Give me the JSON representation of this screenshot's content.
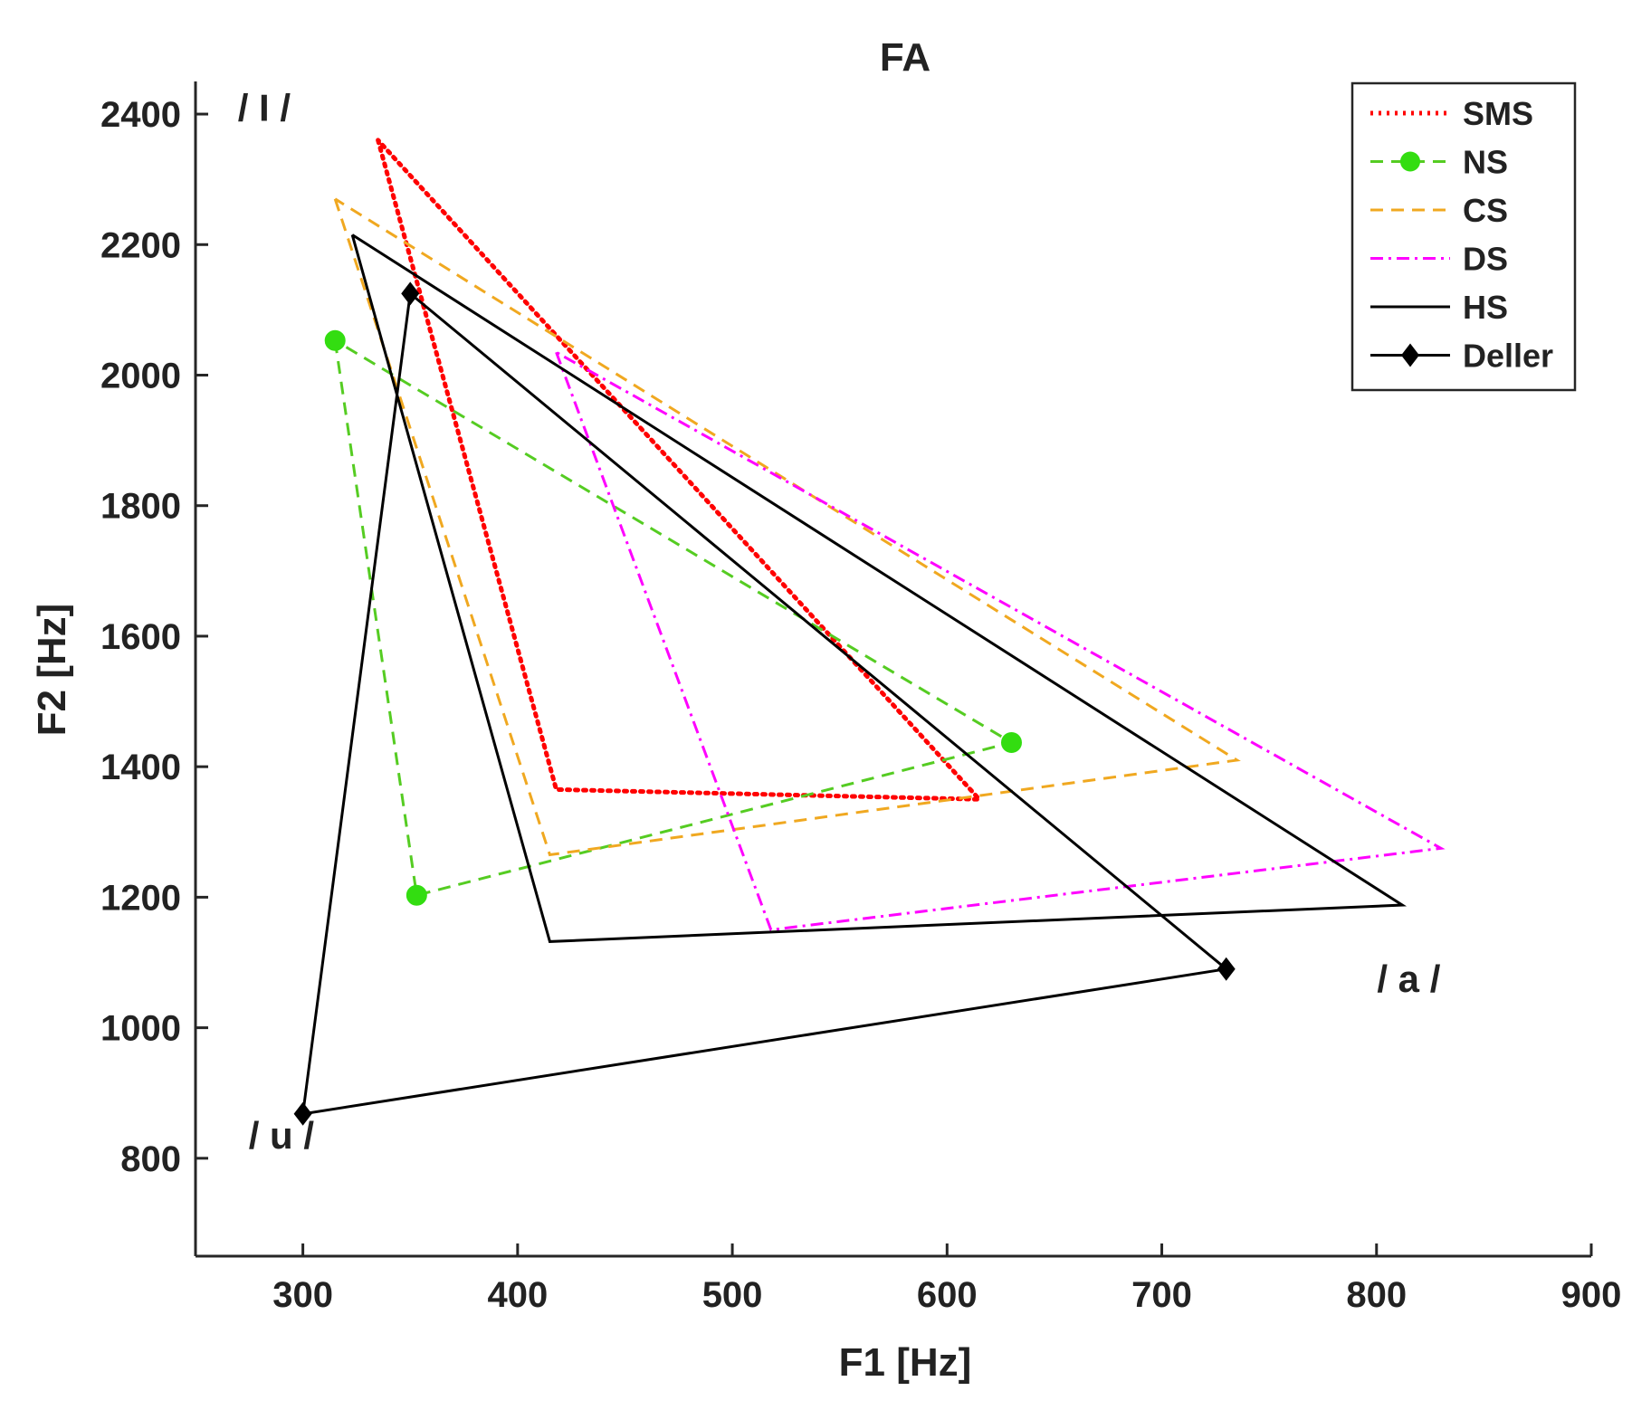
{
  "chart_data": {
    "type": "line",
    "title": "FA",
    "xlabel": "F1 [Hz]",
    "ylabel": "F2 [Hz]",
    "xlim": [
      250,
      900
    ],
    "ylim": [
      650,
      2450
    ],
    "xticks": [
      300,
      400,
      500,
      600,
      700,
      800,
      900
    ],
    "yticks": [
      800,
      1000,
      1200,
      1400,
      1600,
      1800,
      2000,
      2200,
      2400
    ],
    "grid": false,
    "legend_position": "top-right",
    "series": [
      {
        "name": "SMS",
        "color": "#ff0000",
        "style": "dotted",
        "marker": "none",
        "x": [
          335,
          418,
          615,
          335
        ],
        "y": [
          2360,
          1365,
          1350,
          2360
        ]
      },
      {
        "name": "NS",
        "color": "#55cc22",
        "style": "dashed",
        "marker": "circle",
        "x": [
          315,
          353,
          630,
          315
        ],
        "y": [
          2053,
          1203,
          1437,
          2053
        ]
      },
      {
        "name": "CS",
        "color": "#f0a820",
        "style": "dashed",
        "marker": "none",
        "x": [
          315,
          415,
          735,
          315
        ],
        "y": [
          2270,
          1265,
          1410,
          2270
        ]
      },
      {
        "name": "DS",
        "color": "#ff00ff",
        "style": "dashdot",
        "marker": "none",
        "x": [
          418,
          518,
          830,
          418
        ],
        "y": [
          2035,
          1150,
          1275,
          2035
        ]
      },
      {
        "name": "HS",
        "color": "#000000",
        "style": "solid",
        "marker": "none",
        "x": [
          323,
          415,
          812,
          323
        ],
        "y": [
          2215,
          1132,
          1188,
          2215
        ]
      },
      {
        "name": "Deller",
        "color": "#000000",
        "style": "solid",
        "marker": "diamond",
        "x": [
          350,
          300,
          730,
          350
        ],
        "y": [
          2125,
          868,
          1090,
          2125
        ]
      }
    ],
    "annotations": [
      {
        "text": "/ I /",
        "x": 282,
        "y": 2390
      },
      {
        "text": "/ a /",
        "x": 815,
        "y": 1055
      },
      {
        "text": "/ u /",
        "x": 290,
        "y": 815
      }
    ]
  }
}
